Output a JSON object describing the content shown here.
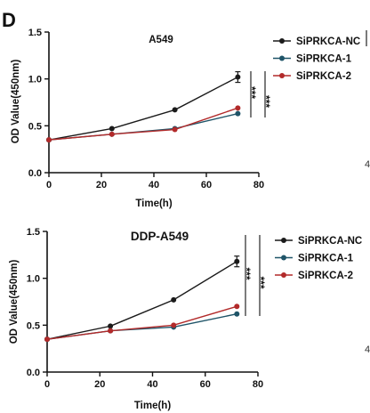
{
  "panel_letter": "D",
  "edge_marks": [
    "4",
    "4"
  ],
  "series_styles": [
    {
      "name": "SiPRKCA-NC",
      "color": "#1a1a1a"
    },
    {
      "name": "SiPRKCA-1",
      "color": "#1f5468"
    },
    {
      "name": "SiPRKCA-2",
      "color": "#b22a2a"
    }
  ],
  "chart_data": [
    {
      "type": "line",
      "title": "A549",
      "xlabel": "Time(h)",
      "ylabel": "OD Value(450nm)",
      "xlim": [
        0,
        80
      ],
      "ylim": [
        0.0,
        1.5
      ],
      "xticks": [
        "0",
        "20",
        "40",
        "60",
        "80"
      ],
      "yticks": [
        "0.0",
        "0.5",
        "1.0",
        "1.5"
      ],
      "legend_position": "right",
      "x": [
        0,
        24,
        48,
        72
      ],
      "series": [
        {
          "name": "SiPRKCA-NC",
          "values": [
            0.35,
            0.47,
            0.67,
            1.02
          ]
        },
        {
          "name": "SiPRKCA-1",
          "values": [
            0.35,
            0.41,
            0.47,
            0.63
          ]
        },
        {
          "name": "SiPRKCA-2",
          "values": [
            0.35,
            0.41,
            0.46,
            0.69
          ]
        }
      ],
      "significance": [
        "***",
        "***"
      ]
    },
    {
      "type": "line",
      "title": "DDP-A549",
      "xlabel": "Time(h)",
      "ylabel": "OD Value(450nm)",
      "xlim": [
        0,
        80
      ],
      "ylim": [
        0.0,
        1.5
      ],
      "xticks": [
        "0",
        "20",
        "40",
        "60",
        "80"
      ],
      "yticks": [
        "0.0",
        "0.5",
        "1.0",
        "1.5"
      ],
      "legend_position": "right",
      "x": [
        0,
        24,
        48,
        72
      ],
      "series": [
        {
          "name": "SiPRKCA-NC",
          "values": [
            0.35,
            0.49,
            0.77,
            1.18
          ]
        },
        {
          "name": "SiPRKCA-1",
          "values": [
            0.35,
            0.44,
            0.48,
            0.62
          ]
        },
        {
          "name": "SiPRKCA-2",
          "values": [
            0.35,
            0.44,
            0.5,
            0.7
          ]
        }
      ],
      "significance": [
        "***",
        "***"
      ]
    }
  ]
}
